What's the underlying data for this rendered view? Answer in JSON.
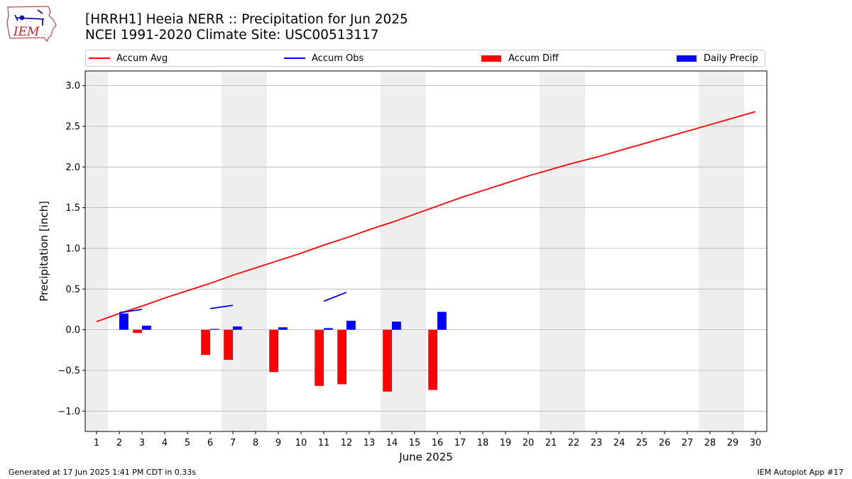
{
  "header": {
    "title": "[HRRH1] Heeia NERR :: Precipitation for Jun 2025",
    "subtitle": "NCEI 1991-2020 Climate Site: USC00513117"
  },
  "logo": {
    "text": "IEM"
  },
  "footer": {
    "generated": "Generated at 17 Jun 2025 1:41 PM CDT in 0.33s",
    "app": "IEM Autoplot App #17"
  },
  "colors": {
    "avg": "#ff0000",
    "obs": "#0000ff",
    "diff": "#ff0000",
    "daily": "#0000ff",
    "weekend": "#eeeeee",
    "grid": "#b0b0b0"
  },
  "chart_data": {
    "type": "bar",
    "xlabel": "June 2025",
    "ylabel": "Precipitation [inch]",
    "ylim": [
      -1.25,
      3.18
    ],
    "xlim": [
      0.5,
      30.5
    ],
    "grid": true,
    "legend_position": "top",
    "yticks": [
      -1.0,
      -0.5,
      0.0,
      0.5,
      1.0,
      1.5,
      2.0,
      2.5,
      3.0
    ],
    "ytick_labels": [
      "−1.0",
      "−0.5",
      "0.0",
      "0.5",
      "1.0",
      "1.5",
      "2.0",
      "2.5",
      "3.0"
    ],
    "xticks": [
      1,
      2,
      3,
      4,
      5,
      6,
      7,
      8,
      9,
      10,
      11,
      12,
      13,
      14,
      15,
      16,
      17,
      18,
      19,
      20,
      21,
      22,
      23,
      24,
      25,
      26,
      27,
      28,
      29,
      30
    ],
    "xtick_labels": [
      "1",
      "2",
      "3",
      "4",
      "5",
      "6",
      "7",
      "8",
      "9",
      "10",
      "11",
      "12",
      "13",
      "14",
      "15",
      "16",
      "17",
      "18",
      "19",
      "20",
      "21",
      "22",
      "23",
      "24",
      "25",
      "26",
      "27",
      "28",
      "29",
      "30"
    ],
    "weekend_spans": [
      [
        0.5,
        1.5
      ],
      [
        6.5,
        8.5
      ],
      [
        13.5,
        15.5
      ],
      [
        20.5,
        22.5
      ],
      [
        27.5,
        29.5
      ]
    ],
    "series": [
      {
        "name": "Accum Avg",
        "kind": "line",
        "x": [
          1,
          2,
          3,
          4,
          5,
          6,
          7,
          8,
          9,
          10,
          11,
          12,
          13,
          14,
          15,
          16,
          17,
          18,
          19,
          20,
          21,
          22,
          23,
          24,
          25,
          26,
          27,
          28,
          29,
          30
        ],
        "values": [
          0.1,
          0.2,
          0.29,
          0.39,
          0.48,
          0.57,
          0.67,
          0.76,
          0.85,
          0.94,
          1.04,
          1.13,
          1.23,
          1.32,
          1.42,
          1.52,
          1.62,
          1.71,
          1.8,
          1.89,
          1.97,
          2.05,
          2.12,
          2.2,
          2.28,
          2.36,
          2.44,
          2.52,
          2.6,
          2.68
        ]
      },
      {
        "name": "Accum Obs",
        "kind": "line",
        "segments": [
          {
            "x": [
              2,
              3
            ],
            "values": [
              0.21,
              0.25
            ]
          },
          {
            "x": [
              6,
              7
            ],
            "values": [
              0.26,
              0.3
            ]
          },
          {
            "x": [
              11,
              12
            ],
            "values": [
              0.35,
              0.46
            ]
          }
        ]
      },
      {
        "name": "Accum Diff",
        "kind": "bar",
        "x": [
          3,
          6,
          7,
          9,
          11,
          12,
          14,
          16
        ],
        "values": [
          -0.04,
          -0.31,
          -0.37,
          -0.52,
          -0.69,
          -0.67,
          -0.76,
          -0.74
        ]
      },
      {
        "name": "Daily Precip",
        "kind": "bar",
        "x": [
          2,
          3,
          6,
          7,
          9,
          11,
          12,
          14,
          16
        ],
        "values": [
          0.2,
          0.05,
          0.01,
          0.04,
          0.03,
          0.02,
          0.11,
          0.1,
          0.22
        ]
      }
    ]
  }
}
